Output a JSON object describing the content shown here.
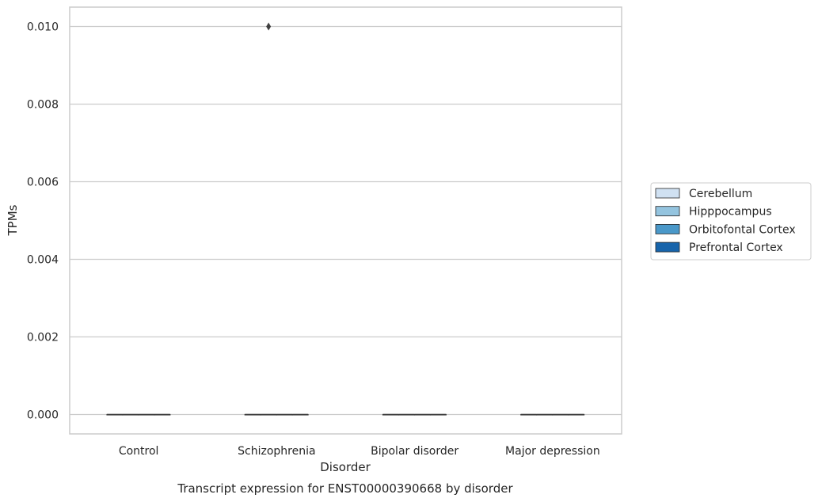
{
  "chart_data": {
    "type": "box",
    "caption": "Transcript expression for ENST00000390668 by disorder",
    "xlabel": "Disorder",
    "ylabel": "TPMs",
    "ylim": [
      -0.0005,
      0.0105
    ],
    "yticks": [
      0.0,
      0.002,
      0.004,
      0.006,
      0.008,
      0.01
    ],
    "ytick_labels": [
      "0.000",
      "0.002",
      "0.004",
      "0.006",
      "0.008",
      "0.010"
    ],
    "categories": [
      "Control",
      "Schizophrenia",
      "Bipolar disorder",
      "Major depression"
    ],
    "grid": true,
    "legend_placement": "right",
    "series": [
      {
        "name": "Cerebellum",
        "color": "#d0e1f2"
      },
      {
        "name": "Hipppocampus",
        "color": "#94c4df"
      },
      {
        "name": "Orbitofontal Cortex",
        "color": "#4a98c9"
      },
      {
        "name": "Prefrontal Cortex",
        "color": "#1764ab"
      }
    ],
    "boxes": [
      {
        "category": "Control",
        "series": "Cerebellum",
        "min": 0,
        "q1": 0,
        "median": 0,
        "q3": 0,
        "max": 0,
        "outliers": []
      },
      {
        "category": "Control",
        "series": "Hipppocampus",
        "min": 0,
        "q1": 0,
        "median": 0,
        "q3": 0,
        "max": 0,
        "outliers": []
      },
      {
        "category": "Control",
        "series": "Orbitofontal Cortex",
        "min": 0,
        "q1": 0,
        "median": 0,
        "q3": 0,
        "max": 0,
        "outliers": []
      },
      {
        "category": "Control",
        "series": "Prefrontal Cortex",
        "min": 0,
        "q1": 0,
        "median": 0,
        "q3": 0,
        "max": 0,
        "outliers": []
      },
      {
        "category": "Schizophrenia",
        "series": "Cerebellum",
        "min": 0,
        "q1": 0,
        "median": 0,
        "q3": 0,
        "max": 0,
        "outliers": []
      },
      {
        "category": "Schizophrenia",
        "series": "Hipppocampus",
        "min": 0,
        "q1": 0,
        "median": 0,
        "q3": 0,
        "max": 0,
        "outliers": [
          0.01
        ]
      },
      {
        "category": "Schizophrenia",
        "series": "Orbitofontal Cortex",
        "min": 0,
        "q1": 0,
        "median": 0,
        "q3": 0,
        "max": 0,
        "outliers": []
      },
      {
        "category": "Schizophrenia",
        "series": "Prefrontal Cortex",
        "min": 0,
        "q1": 0,
        "median": 0,
        "q3": 0,
        "max": 0,
        "outliers": []
      },
      {
        "category": "Bipolar disorder",
        "series": "Cerebellum",
        "min": 0,
        "q1": 0,
        "median": 0,
        "q3": 0,
        "max": 0,
        "outliers": []
      },
      {
        "category": "Bipolar disorder",
        "series": "Hipppocampus",
        "min": 0,
        "q1": 0,
        "median": 0,
        "q3": 0,
        "max": 0,
        "outliers": []
      },
      {
        "category": "Bipolar disorder",
        "series": "Orbitofontal Cortex",
        "min": 0,
        "q1": 0,
        "median": 0,
        "q3": 0,
        "max": 0,
        "outliers": []
      },
      {
        "category": "Bipolar disorder",
        "series": "Prefrontal Cortex",
        "min": 0,
        "q1": 0,
        "median": 0,
        "q3": 0,
        "max": 0,
        "outliers": []
      },
      {
        "category": "Major depression",
        "series": "Cerebellum",
        "min": 0,
        "q1": 0,
        "median": 0,
        "q3": 0,
        "max": 0,
        "outliers": []
      },
      {
        "category": "Major depression",
        "series": "Hipppocampus",
        "min": 0,
        "q1": 0,
        "median": 0,
        "q3": 0,
        "max": 0,
        "outliers": []
      },
      {
        "category": "Major depression",
        "series": "Orbitofontal Cortex",
        "min": 0,
        "q1": 0,
        "median": 0,
        "q3": 0,
        "max": 0,
        "outliers": []
      },
      {
        "category": "Major depression",
        "series": "Prefrontal Cortex",
        "min": 0,
        "q1": 0,
        "median": 0,
        "q3": 0,
        "max": 0,
        "outliers": []
      }
    ]
  }
}
